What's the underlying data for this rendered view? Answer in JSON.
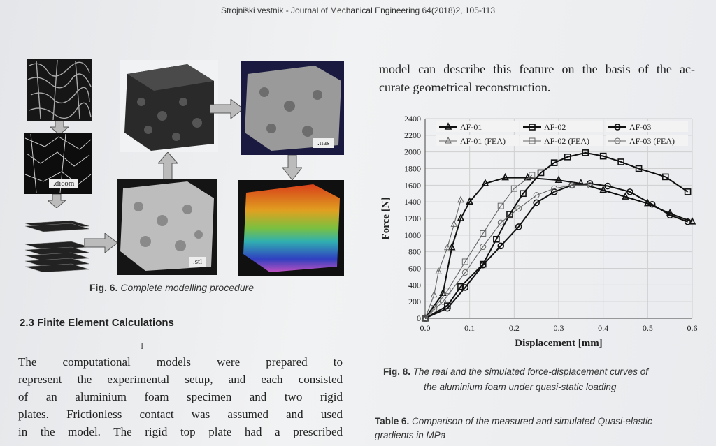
{
  "header": {
    "journal": "Strojniški vestnik - Journal of Mechanical Engineering 64(2018)2, 105-113"
  },
  "figure6": {
    "caption_num": "Fig. 6.",
    "caption_text": "Complete modelling procedure",
    "labels": {
      "dicom": ".dicom",
      "stl": ".stl",
      "nas": ".nas"
    }
  },
  "section": {
    "heading": "2.3 Finite Element Calculations"
  },
  "left_text": {
    "lines": [
      "The computational models were prepared to",
      "represent the experimental setup, and each consisted",
      "of an aluminium foam specimen and two rigid",
      "plates. Frictionless contact was assumed and used",
      "in the model. The rigid top plate had a prescribed"
    ]
  },
  "right_text": {
    "lines": [
      "model can describe this feature on the basis of the ac-",
      "curate geometrical reconstruction."
    ]
  },
  "figure8": {
    "caption_num": "Fig. 8.",
    "caption_line1": "The real and the simulated force-displacement curves of",
    "caption_line2": "the aluminium foam under quasi-static loading"
  },
  "table6": {
    "caption_num": "Table 6.",
    "caption_line1": "Comparison of the measured and simulated Quasi-elastic",
    "caption_line2": "gradients in MPa"
  },
  "chart_data": {
    "type": "line",
    "xlabel": "Displacement [mm]",
    "ylabel": "Force [N]",
    "xlim": [
      0,
      0.6
    ],
    "ylim": [
      0,
      2400
    ],
    "xticks": [
      "0.0",
      "0.1",
      "0.2",
      "0.3",
      "0.4",
      "0.5",
      "0.6"
    ],
    "yticks": [
      "0",
      "200",
      "400",
      "600",
      "800",
      "1000",
      "1200",
      "1400",
      "1600",
      "1800",
      "2000",
      "2200",
      "2400"
    ],
    "grid": true,
    "legend_position": "top",
    "series": [
      {
        "name": "AF-01",
        "marker": "triangle",
        "style": "solid",
        "x": [
          0.0,
          0.04,
          0.06,
          0.08,
          0.1,
          0.135,
          0.18,
          0.23,
          0.3,
          0.35,
          0.4,
          0.45,
          0.5,
          0.55,
          0.6
        ],
        "y": [
          0,
          300,
          850,
          1200,
          1400,
          1620,
          1690,
          1690,
          1660,
          1620,
          1540,
          1460,
          1380,
          1260,
          1160
        ]
      },
      {
        "name": "AF-01 (FEA)",
        "marker": "triangle",
        "style": "thin",
        "x": [
          0.0,
          0.02,
          0.03,
          0.05,
          0.065,
          0.08
        ],
        "y": [
          0,
          280,
          560,
          850,
          1130,
          1420
        ]
      },
      {
        "name": "AF-02",
        "marker": "square",
        "style": "solid",
        "x": [
          0.0,
          0.05,
          0.08,
          0.13,
          0.16,
          0.19,
          0.22,
          0.26,
          0.29,
          0.32,
          0.36,
          0.4,
          0.44,
          0.48,
          0.54,
          0.59
        ],
        "y": [
          0,
          150,
          380,
          650,
          950,
          1250,
          1500,
          1750,
          1870,
          1940,
          1990,
          1950,
          1880,
          1800,
          1700,
          1520
        ]
      },
      {
        "name": "AF-02 (FEA)",
        "marker": "square",
        "style": "thin",
        "x": [
          0.0,
          0.02,
          0.05,
          0.09,
          0.13,
          0.17,
          0.2,
          0.24
        ],
        "y": [
          0,
          120,
          330,
          680,
          1020,
          1350,
          1560,
          1720
        ]
      },
      {
        "name": "AF-03",
        "marker": "circle",
        "style": "solid",
        "x": [
          0.0,
          0.05,
          0.09,
          0.13,
          0.17,
          0.21,
          0.25,
          0.29,
          0.33,
          0.37,
          0.41,
          0.46,
          0.51,
          0.55,
          0.59
        ],
        "y": [
          0,
          120,
          370,
          640,
          870,
          1100,
          1390,
          1520,
          1600,
          1620,
          1590,
          1520,
          1370,
          1240,
          1160
        ]
      },
      {
        "name": "AF-03 (FEA)",
        "marker": "circle",
        "style": "thin",
        "x": [
          0.0,
          0.04,
          0.09,
          0.13,
          0.17,
          0.21,
          0.25,
          0.29,
          0.33,
          0.37
        ],
        "y": [
          0,
          200,
          550,
          860,
          1150,
          1320,
          1480,
          1560,
          1600,
          1600
        ]
      }
    ]
  }
}
